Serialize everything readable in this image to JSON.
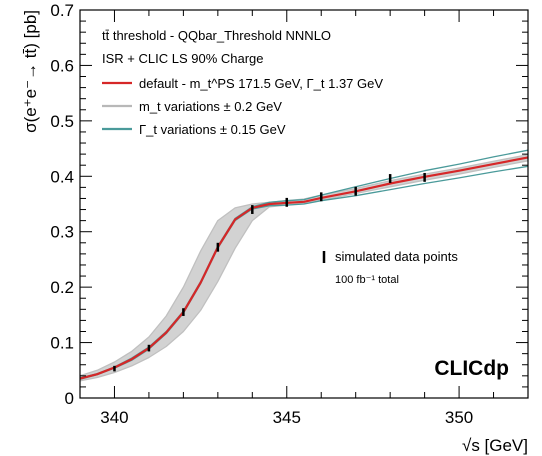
{
  "chart_data": {
    "type": "line",
    "xlabel_sqrt": "√",
    "xlabel_rest": "s [GeV]",
    "ylabel": "σ(e⁺e⁻→ tt̄) [pb]",
    "xlim": [
      339,
      352
    ],
    "ylim": [
      0,
      0.7
    ],
    "x_ticks": [
      340,
      345,
      350
    ],
    "y_ticks": [
      0,
      0.1,
      0.2,
      0.3,
      0.4,
      0.5,
      0.6,
      0.7
    ],
    "grid": false,
    "legend_position": "top-left",
    "header_lines": [
      "tt̄ threshold - QQbar_Threshold NNNLO",
      "ISR + CLIC LS 90% Charge"
    ],
    "legend": [
      {
        "label": "default - m_t^PS 171.5 GeV, Γ_t 1.37 GeV",
        "color": "#d62728"
      },
      {
        "label": "m_t variations ± 0.2 GeV",
        "color": "#b8b8b8"
      },
      {
        "label": "Γ_t variations ± 0.15 GeV",
        "color": "#4a9a9a"
      }
    ],
    "data_label": "simulated data points",
    "data_sublabel": "100 fb⁻¹ total",
    "watermark": "CLICdp",
    "series": [
      {
        "name": "default - m_t^PS 171.5 GeV, Γ_t 1.37 GeV",
        "color": "#d62728",
        "x": [
          339,
          339.5,
          340,
          340.5,
          341,
          341.5,
          342,
          342.5,
          343,
          343.5,
          344,
          344.5,
          345,
          345.5,
          346,
          347,
          348,
          349,
          350,
          351,
          352
        ],
        "y": [
          0.035,
          0.043,
          0.055,
          0.07,
          0.09,
          0.118,
          0.155,
          0.208,
          0.272,
          0.322,
          0.343,
          0.35,
          0.352,
          0.354,
          0.361,
          0.373,
          0.387,
          0.399,
          0.41,
          0.422,
          0.434
        ]
      },
      {
        "name": "m_t variations ± 0.2 GeV (lower)",
        "color": "#c0c0c0",
        "x": [
          339,
          339.5,
          340,
          340.5,
          341,
          341.5,
          342,
          342.5,
          343,
          343.5,
          344,
          344.5,
          345,
          345.5,
          346,
          347,
          348,
          349,
          350,
          351,
          352
        ],
        "y": [
          0.031,
          0.037,
          0.046,
          0.058,
          0.073,
          0.093,
          0.12,
          0.158,
          0.21,
          0.27,
          0.32,
          0.345,
          0.348,
          0.351,
          0.357,
          0.369,
          0.381,
          0.393,
          0.404,
          0.416,
          0.428
        ]
      },
      {
        "name": "m_t variations ± 0.2 GeV (upper)",
        "color": "#c0c0c0",
        "x": [
          339,
          339.5,
          340,
          340.5,
          341,
          341.5,
          342,
          342.5,
          343,
          343.5,
          344,
          344.5,
          345,
          345.5,
          346,
          347,
          348,
          349,
          350,
          351,
          352
        ],
        "y": [
          0.04,
          0.05,
          0.065,
          0.084,
          0.11,
          0.148,
          0.2,
          0.265,
          0.32,
          0.343,
          0.35,
          0.353,
          0.356,
          0.359,
          0.366,
          0.378,
          0.392,
          0.404,
          0.415,
          0.427,
          0.439
        ]
      },
      {
        "name": "Γ_t variations ± 0.15 GeV (lower)",
        "color": "#4a9a9a",
        "x": [
          339,
          339.5,
          340,
          340.5,
          341,
          341.5,
          342,
          342.5,
          343,
          343.5,
          344,
          344.5,
          345,
          345.5,
          346,
          347,
          348,
          349,
          350,
          351,
          352
        ],
        "y": [
          0.034,
          0.042,
          0.054,
          0.068,
          0.088,
          0.116,
          0.153,
          0.206,
          0.27,
          0.32,
          0.341,
          0.347,
          0.348,
          0.35,
          0.356,
          0.365,
          0.376,
          0.387,
          0.397,
          0.408,
          0.418
        ]
      },
      {
        "name": "Γ_t variations ± 0.15 GeV (upper)",
        "color": "#4a9a9a",
        "x": [
          339,
          339.5,
          340,
          340.5,
          341,
          341.5,
          342,
          342.5,
          343,
          343.5,
          344,
          344.5,
          345,
          345.5,
          346,
          347,
          348,
          349,
          350,
          351,
          352
        ],
        "y": [
          0.036,
          0.044,
          0.056,
          0.072,
          0.092,
          0.12,
          0.157,
          0.21,
          0.274,
          0.324,
          0.345,
          0.353,
          0.356,
          0.358,
          0.366,
          0.381,
          0.396,
          0.41,
          0.422,
          0.435,
          0.447
        ]
      }
    ],
    "points": {
      "name": "simulated data points",
      "x": [
        340,
        341,
        342,
        343,
        344,
        345,
        346,
        347,
        348,
        349
      ],
      "y": [
        0.053,
        0.09,
        0.155,
        0.272,
        0.34,
        0.353,
        0.363,
        0.373,
        0.396,
        0.398
      ],
      "err": [
        0.005,
        0.006,
        0.007,
        0.008,
        0.008,
        0.008,
        0.008,
        0.008,
        0.008,
        0.008
      ]
    }
  }
}
